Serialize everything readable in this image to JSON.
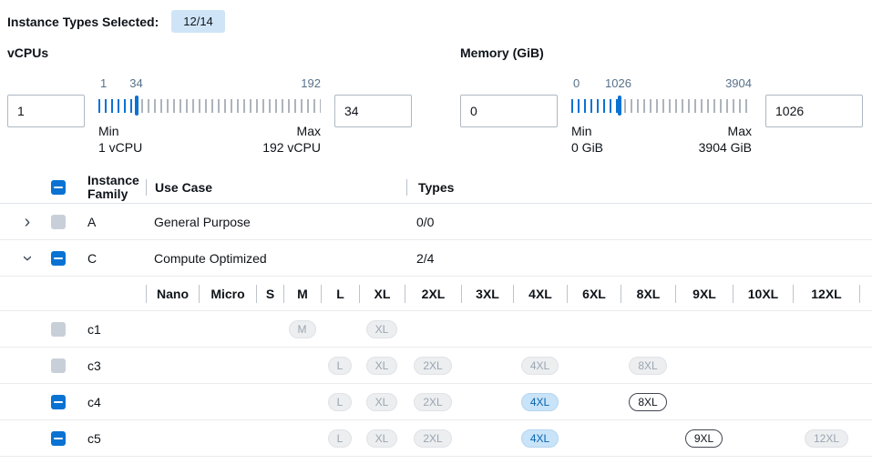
{
  "colors": {
    "accent": "#0972d3",
    "badge_bg": "#cfe5f7",
    "selected_pill_bg": "#c9e3f8",
    "disabled_pill_bg": "#eceef0"
  },
  "header": {
    "label": "Instance Types Selected:",
    "badge": "12/14"
  },
  "vcpus": {
    "title": "vCPUs",
    "from_value": "1",
    "to_value": "34",
    "scale": {
      "start": "1",
      "current": "34",
      "end": "192"
    },
    "min_label": "Min",
    "min_detail": "1 vCPU",
    "max_label": "Max",
    "max_detail": "192 vCPU"
  },
  "memory": {
    "title": "Memory (GiB)",
    "from_value": "0",
    "to_value": "1026",
    "scale": {
      "start": "0",
      "current": "1026",
      "end": "3904"
    },
    "min_label": "Min",
    "min_detail": "0 GiB",
    "max_label": "Max",
    "max_detail": "3904 GiB"
  },
  "table": {
    "headers": {
      "family": "Instance Family",
      "use_case": "Use Case",
      "types": "Types"
    },
    "size_columns": [
      "Nano",
      "Micro",
      "S",
      "M",
      "L",
      "XL",
      "2XL",
      "3XL",
      "4XL",
      "6XL",
      "8XL",
      "9XL",
      "10XL",
      "12XL"
    ],
    "families": [
      {
        "name": "A",
        "use_case": "General Purpose",
        "types": "0/0",
        "checkbox": "disabled",
        "expanded": false
      },
      {
        "name": "C",
        "use_case": "Compute Optimized",
        "types": "2/4",
        "checkbox": "indeterminate",
        "expanded": true
      }
    ],
    "instances": [
      {
        "name": "c1",
        "checkbox": "disabled",
        "sizes": [
          {
            "label": "M",
            "state": "disabled"
          },
          {
            "label": "XL",
            "state": "disabled"
          }
        ]
      },
      {
        "name": "c3",
        "checkbox": "disabled",
        "sizes": [
          {
            "label": "L",
            "state": "disabled"
          },
          {
            "label": "XL",
            "state": "disabled"
          },
          {
            "label": "2XL",
            "state": "disabled"
          },
          {
            "label": "4XL",
            "state": "disabled"
          },
          {
            "label": "8XL",
            "state": "disabled"
          }
        ]
      },
      {
        "name": "c4",
        "checkbox": "indeterminate",
        "sizes": [
          {
            "label": "L",
            "state": "disabled"
          },
          {
            "label": "XL",
            "state": "disabled"
          },
          {
            "label": "2XL",
            "state": "disabled"
          },
          {
            "label": "4XL",
            "state": "selected"
          },
          {
            "label": "8XL",
            "state": "available"
          }
        ]
      },
      {
        "name": "c5",
        "checkbox": "indeterminate",
        "sizes": [
          {
            "label": "L",
            "state": "disabled"
          },
          {
            "label": "XL",
            "state": "disabled"
          },
          {
            "label": "2XL",
            "state": "disabled"
          },
          {
            "label": "4XL",
            "state": "selected"
          },
          {
            "label": "9XL",
            "state": "available"
          },
          {
            "label": "12XL",
            "state": "disabled"
          }
        ]
      }
    ]
  }
}
